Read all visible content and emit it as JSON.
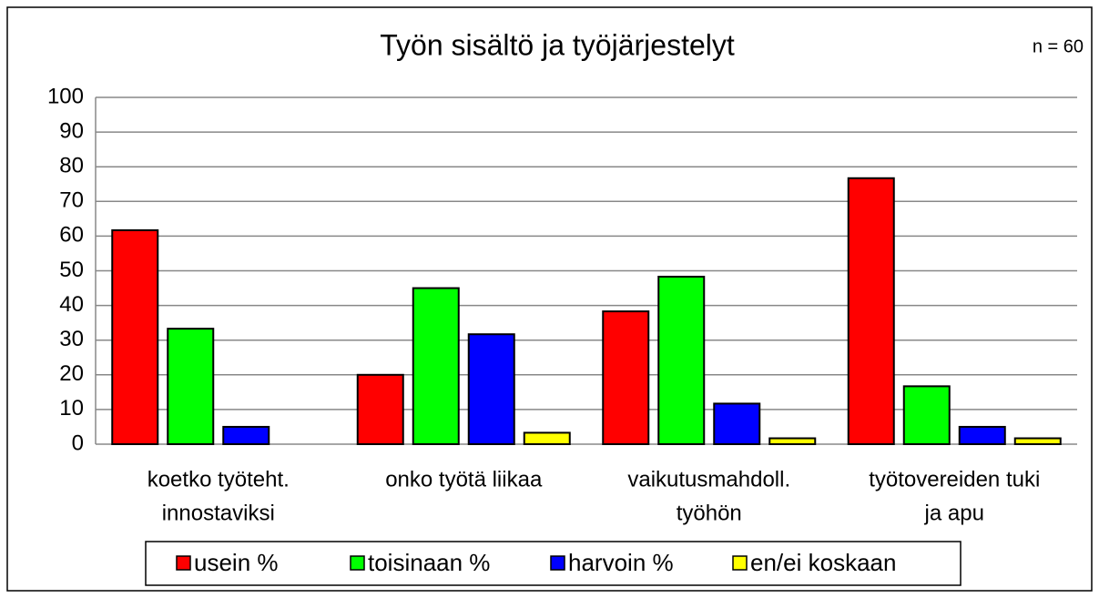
{
  "chart_data": {
    "type": "bar",
    "title": "Työn sisältö ja työjärjestelyt",
    "annotation": "n = 60",
    "categories": [
      [
        "koetko työteht.",
        "innostaviksi"
      ],
      [
        "onko työtä liikaa"
      ],
      [
        "vaikutusmahdoll.",
        "työhön"
      ],
      [
        "työtovereiden tuki",
        "ja apu"
      ]
    ],
    "series": [
      {
        "name": "usein %",
        "color": "#ff0000",
        "values": [
          61.7,
          20,
          38.3,
          76.7
        ]
      },
      {
        "name": "toisinaan %",
        "color": "#00ff00",
        "values": [
          33.3,
          45,
          48.3,
          16.7
        ]
      },
      {
        "name": "harvoin %",
        "color": "#0000ff",
        "values": [
          5,
          31.7,
          11.7,
          5
        ]
      },
      {
        "name": "en/ei koskaan",
        "color": "#ffff00",
        "values": [
          0,
          3.3,
          1.7,
          1.7
        ]
      }
    ],
    "ylim": [
      0,
      100
    ],
    "yticks": [
      0,
      10,
      20,
      30,
      40,
      50,
      60,
      70,
      80,
      90,
      100
    ],
    "grid": true,
    "legend": "bottom"
  }
}
